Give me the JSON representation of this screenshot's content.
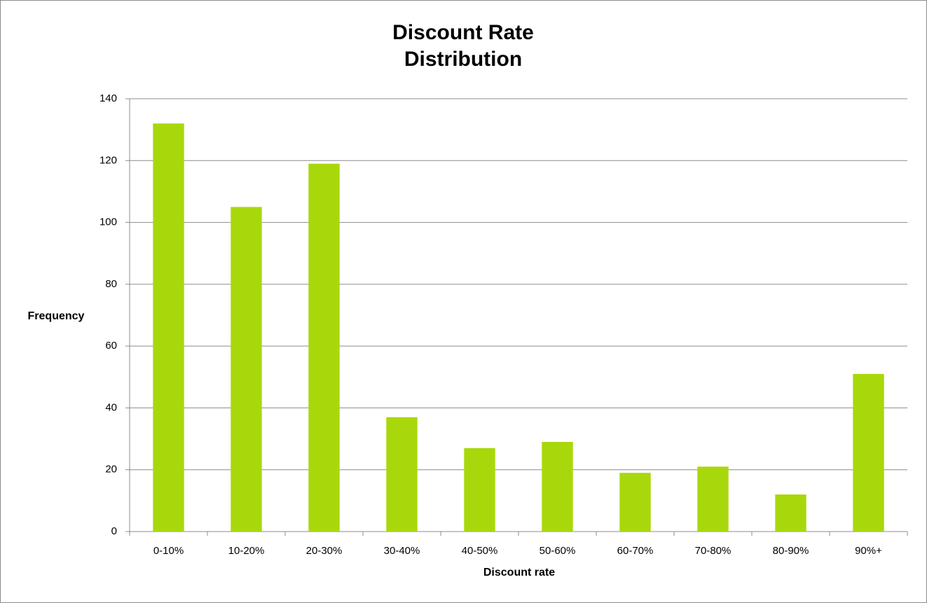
{
  "chart_data": {
    "type": "bar",
    "title": "Discount Rate Distribution",
    "x_label": "Discount rate",
    "y_label": "Frequency",
    "categories": [
      "0-10%",
      "10-20%",
      "20-30%",
      "30-40%",
      "40-50%",
      "50-60%",
      "60-70%",
      "70-80%",
      "80-90%",
      "90%+"
    ],
    "values": [
      132,
      105,
      119,
      37,
      27,
      29,
      19,
      21,
      12,
      51
    ],
    "color": "#a8d80c",
    "ylim": [
      0,
      140
    ],
    "yticks": [
      0,
      20,
      40,
      60,
      80,
      100,
      120,
      140
    ],
    "grid": true
  }
}
